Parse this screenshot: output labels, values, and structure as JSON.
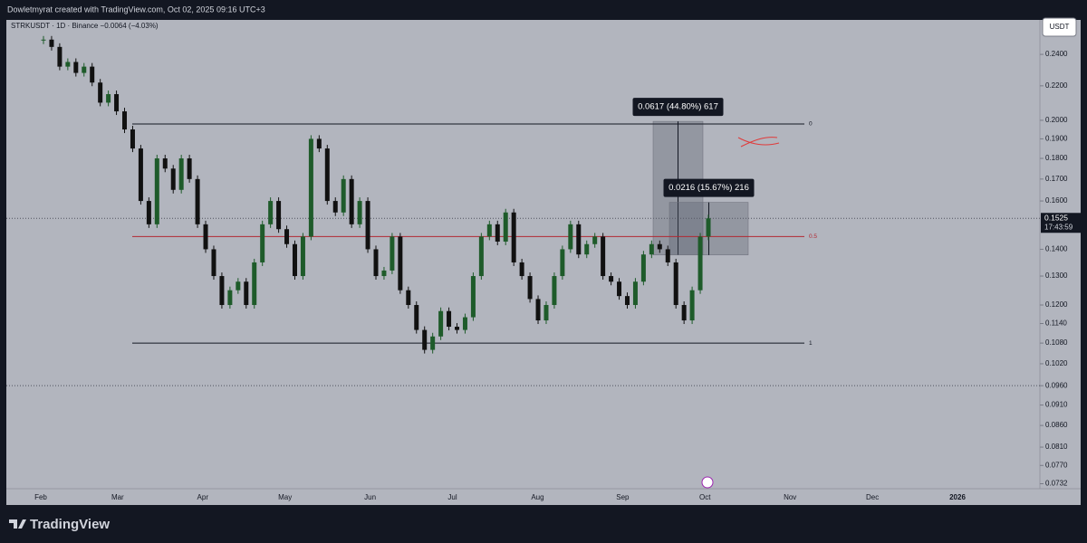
{
  "header": {
    "text": "Dowletmyrat created with TradingView.com, Oct 02, 2025 09:16 UTC+3"
  },
  "footer": {
    "logo": "TradingView"
  },
  "chart_data": {
    "type": "candlestick",
    "symbol_line": "STRKUSDT · 1D · Binance  −0.0064 (−4.03%)",
    "currency": "USDT",
    "log_scale": true,
    "ylim": [
      0.0722,
      0.264
    ],
    "yticks": [
      {
        "value": 0.24,
        "label": "0.2400"
      },
      {
        "value": 0.22,
        "label": "0.2200"
      },
      {
        "value": 0.2,
        "label": "0.2000"
      },
      {
        "value": 0.19,
        "label": "0.1900"
      },
      {
        "value": 0.18,
        "label": "0.1800"
      },
      {
        "value": 0.17,
        "label": "0.1700"
      },
      {
        "value": 0.16,
        "label": "0.1600"
      },
      {
        "value": 0.14,
        "label": "0.1400"
      },
      {
        "value": 0.13,
        "label": "0.1300"
      },
      {
        "value": 0.12,
        "label": "0.1200"
      },
      {
        "value": 0.114,
        "label": "0.1140"
      },
      {
        "value": 0.108,
        "label": "0.1080"
      },
      {
        "value": 0.102,
        "label": "0.1020"
      },
      {
        "value": 0.096,
        "label": "0.0960"
      },
      {
        "value": 0.091,
        "label": "0.0910"
      },
      {
        "value": 0.086,
        "label": "0.0860"
      },
      {
        "value": 0.081,
        "label": "0.0810"
      },
      {
        "value": 0.077,
        "label": "0.0770"
      },
      {
        "value": 0.0732,
        "label": "0.0732"
      }
    ],
    "x_labels": [
      "Feb",
      "Mar",
      "Apr",
      "May",
      "Jun",
      "Jul",
      "Aug",
      "Sep",
      "Oct",
      "Nov",
      "Dec",
      "2026"
    ],
    "up_color": "#1e5b2a",
    "down_color": "#111111",
    "close": [
      0.25,
      0.245,
      0.232,
      0.235,
      0.228,
      0.232,
      0.222,
      0.21,
      0.215,
      0.205,
      0.195,
      0.185,
      0.16,
      0.15,
      0.18,
      0.175,
      0.165,
      0.18,
      0.17,
      0.15,
      0.14,
      0.13,
      0.12,
      0.125,
      0.128,
      0.12,
      0.135,
      0.15,
      0.16,
      0.148,
      0.142,
      0.13,
      0.145,
      0.19,
      0.185,
      0.16,
      0.155,
      0.17,
      0.15,
      0.16,
      0.14,
      0.13,
      0.132,
      0.145,
      0.125,
      0.12,
      0.112,
      0.106,
      0.11,
      0.118,
      0.113,
      0.112,
      0.116,
      0.13,
      0.145,
      0.15,
      0.143,
      0.155,
      0.135,
      0.13,
      0.122,
      0.115,
      0.12,
      0.13,
      0.14,
      0.15,
      0.138,
      0.142,
      0.145,
      0.13,
      0.128,
      0.123,
      0.12,
      0.128,
      0.138,
      0.142,
      0.14,
      0.135,
      0.12,
      0.115,
      0.125,
      0.145,
      0.1525
    ],
    "levels": [
      {
        "label": "0",
        "value": 0.198,
        "color": "#131722"
      },
      {
        "label": "0.5",
        "value": 0.145,
        "color": "#b22833"
      },
      {
        "label": "1",
        "value": 0.108,
        "color": "#131722"
      }
    ],
    "dotted_levels": [
      0.096
    ],
    "measures": [
      {
        "label": "0.0617 (44.80%) 617",
        "from": 0.1378,
        "to": 0.1994
      },
      {
        "label": "0.0216 (15.67%) 216",
        "from": 0.1378,
        "to": 0.1594
      }
    ],
    "last_price": {
      "value": 0.1525,
      "label": "0.1525",
      "countdown": "17:43:59"
    }
  }
}
